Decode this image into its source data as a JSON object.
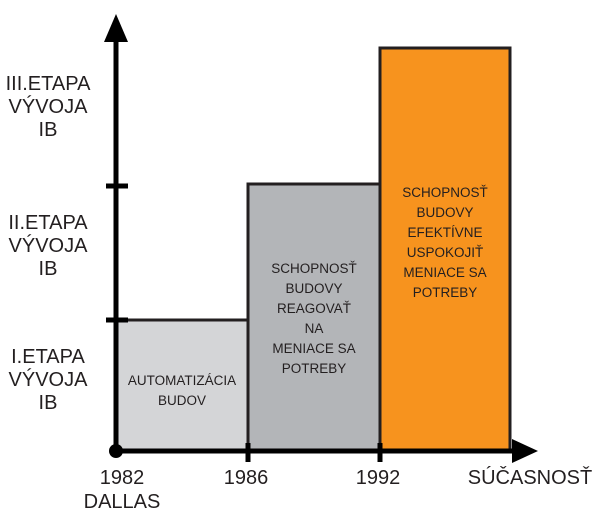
{
  "chart_data": {
    "type": "bar",
    "title": "",
    "stages": [
      {
        "lines": [
          "I.ETAPA",
          "VÝVOJA",
          "IB"
        ],
        "level": 1
      },
      {
        "lines": [
          "II.ETAPA",
          "VÝVOJA",
          "IB"
        ],
        "level": 2
      },
      {
        "lines": [
          "III.ETAPA",
          "VÝVOJA",
          "IB"
        ],
        "level": 3
      }
    ],
    "x_ticks": [
      {
        "label": "1982",
        "sub": "DALLAS"
      },
      {
        "label": "1986"
      },
      {
        "label": "1992"
      },
      {
        "label": "SÚČASNOSŤ"
      }
    ],
    "bars": [
      {
        "from": "1982",
        "to": "1986",
        "level": 1,
        "color": "#d4d5d7",
        "lines": [
          "AUTOMATIZÁCIA",
          "BUDOV"
        ]
      },
      {
        "from": "1986",
        "to": "1992",
        "level": 2,
        "color": "#b3b5b8",
        "lines": [
          "SCHOPNOSŤ",
          "BUDOVY",
          "REAGOVAŤ",
          "NA",
          "MENIACE SA",
          "POTREBY"
        ]
      },
      {
        "from": "1992",
        "to": "SÚČASNOSŤ",
        "level": 3,
        "color": "#f7931e",
        "lines": [
          "SCHOPNOSŤ",
          "BUDOVY",
          "EFEKTÍVNE",
          "USPOKOJIŤ",
          "MENIACE SA",
          "POTREBY"
        ]
      }
    ]
  }
}
